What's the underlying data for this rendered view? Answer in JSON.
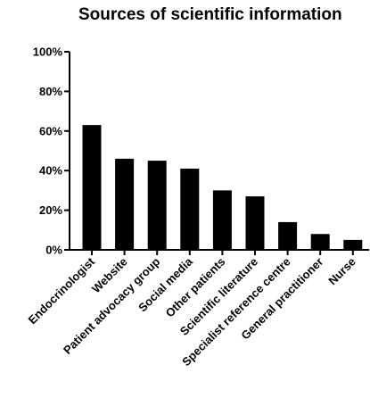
{
  "chart_data": {
    "type": "bar",
    "title": "Sources of scientific information",
    "xlabel": "",
    "ylabel": "",
    "ylim": [
      0,
      100
    ],
    "y_ticks": [
      0,
      20,
      40,
      60,
      80,
      100
    ],
    "y_tick_labels": [
      "0%",
      "20%",
      "40%",
      "60%",
      "80%",
      "100%"
    ],
    "categories": [
      "Endocrinologist",
      "Website",
      "Patient advocacy group",
      "Social media",
      "Other patients",
      "Scientific literature",
      "Specialist reference centre",
      "General practitioner",
      "Nurse"
    ],
    "values": [
      63,
      46,
      45,
      41,
      30,
      27,
      14,
      8,
      5
    ],
    "grid": false,
    "legend": "none",
    "bar_color": "#000000"
  }
}
